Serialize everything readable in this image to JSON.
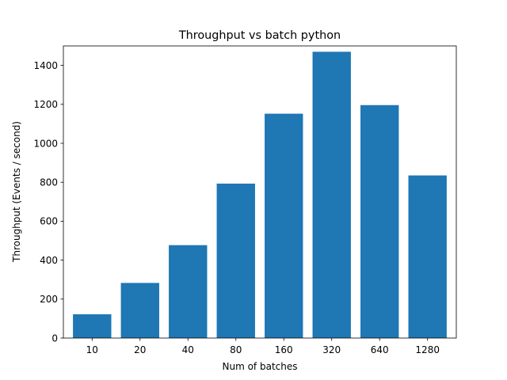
{
  "chart_data": {
    "type": "bar",
    "title": "Throughput vs batch python",
    "xlabel": "Num of batches",
    "ylabel": "Throughput (Events / second)",
    "categories": [
      "10",
      "20",
      "40",
      "80",
      "160",
      "320",
      "640",
      "1280"
    ],
    "values": [
      122,
      283,
      477,
      793,
      1152,
      1470,
      1196,
      835
    ],
    "ylim": [
      0,
      1500
    ],
    "yticks": [
      "0",
      "200",
      "400",
      "600",
      "800",
      "1000",
      "1200",
      "1400"
    ],
    "bar_color": "#1f77b4",
    "grid": false,
    "legend": "none"
  }
}
